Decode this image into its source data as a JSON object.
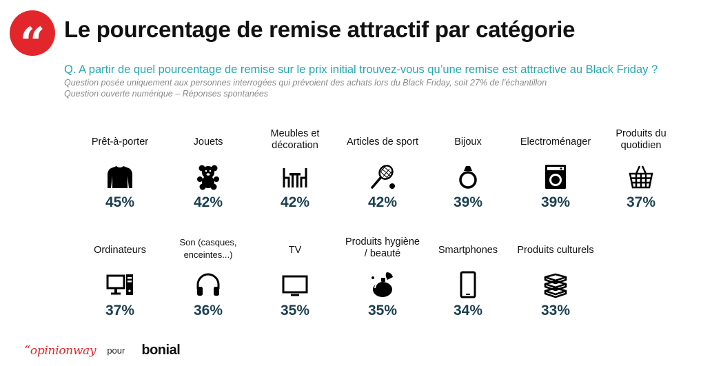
{
  "badge": {
    "glyph": "“",
    "color": "#e3262b"
  },
  "title": "Le pourcentage de remise attractif par catégorie",
  "question": "Q. A partir de quel pourcentage de remise sur le prix initial trouvez-vous qu’une remise est attractive au Black Friday ?",
  "note1": "Question posée uniquement aux personnes interrogées qui prévoient des achats lors du Black Friday, soit 27% de l’échantillon",
  "note2": "Question ouverte numérique – Réponses spontanées",
  "chart_data": {
    "type": "table",
    "title": "Le pourcentage de remise attractif par catégorie",
    "unit": "%",
    "categories": [
      {
        "label": "Prêt-à-porter",
        "value": 45,
        "display": "45%",
        "icon": "sweater-icon"
      },
      {
        "label": "Jouets",
        "value": 42,
        "display": "42%",
        "icon": "teddy-bear-icon"
      },
      {
        "label": "Meubles et\ndécoration",
        "value": 42,
        "display": "42%",
        "icon": "table-chairs-icon"
      },
      {
        "label": "Articles de sport",
        "value": 42,
        "display": "42%",
        "icon": "tennis-racket-icon"
      },
      {
        "label": "Bijoux",
        "value": 39,
        "display": "39%",
        "icon": "ring-icon"
      },
      {
        "label": "Electroménager",
        "value": 39,
        "display": "39%",
        "icon": "washing-machine-icon"
      },
      {
        "label": "Produits du\nquotidien",
        "value": 37,
        "display": "37%",
        "icon": "shopping-basket-icon"
      },
      {
        "label": "Ordinateurs",
        "value": 37,
        "display": "37%",
        "icon": "desktop-computer-icon"
      },
      {
        "label": "Son (casques,\nenceintes...)",
        "value": 36,
        "display": "36%",
        "icon": "headphones-icon"
      },
      {
        "label": "TV",
        "value": 35,
        "display": "35%",
        "icon": "tv-icon"
      },
      {
        "label": "Produits hygiène\n/ beauté",
        "value": 35,
        "display": "35%",
        "icon": "perfume-bottle-icon"
      },
      {
        "label": "Smartphones",
        "value": 34,
        "display": "34%",
        "icon": "smartphone-icon"
      },
      {
        "label": "Produits culturels",
        "value": 33,
        "display": "33%",
        "icon": "books-icon"
      }
    ]
  },
  "colors": {
    "accent": "#e3262b",
    "question": "#24a7b0",
    "value": "#1b3f50"
  },
  "footer": {
    "logo_left_quote": "“",
    "logo_left_text": "opinionway",
    "pour": "pour",
    "logo_right": "bonial"
  }
}
